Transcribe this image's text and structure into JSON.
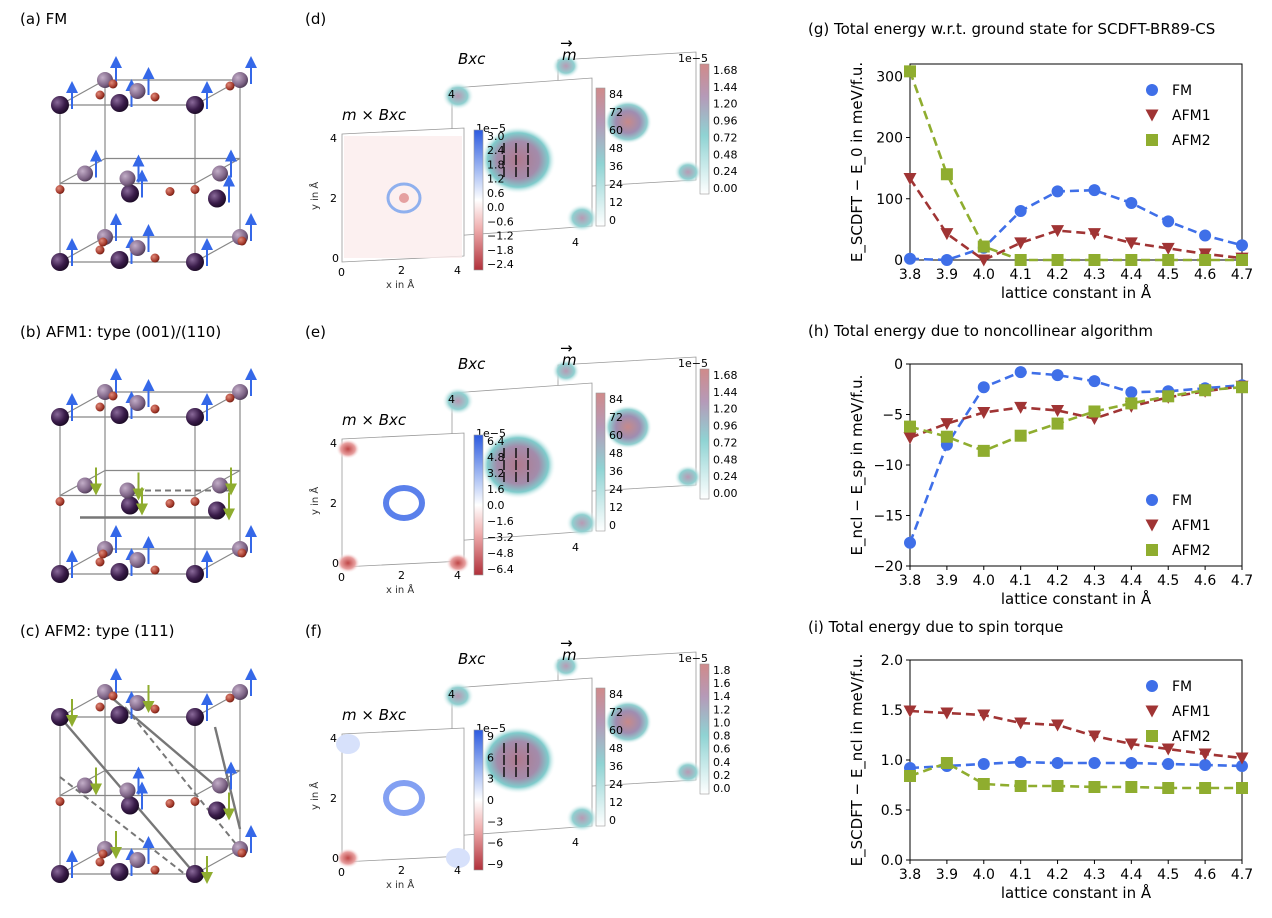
{
  "panels": {
    "a": "(a) FM",
    "b": "(b) AFM1: type (001)/(110)",
    "c": "(c) AFM2: type (111)",
    "d": "(d)",
    "e": "(e)",
    "f": "(f)"
  },
  "map_labels": {
    "torque": "m × Bxc",
    "bxc": "Bxc",
    "m": "m",
    "xlabel": "x in Å",
    "ylabel": "y in Å",
    "scale": "1e−5",
    "tick0": "0",
    "tick2": "2",
    "tick4": "4"
  },
  "colorbars": {
    "d_torque": [
      "3.0",
      "2.4",
      "1.8",
      "1.2",
      "0.6",
      "0.0",
      "−0.6",
      "−1.2",
      "−1.8",
      "−2.4"
    ],
    "e_torque": [
      "6.4",
      "4.8",
      "3.2",
      "1.6",
      "0.0",
      "−1.6",
      "−3.2",
      "−4.8",
      "−6.4"
    ],
    "f_torque": [
      "9",
      "6",
      "3",
      "0",
      "−3",
      "−6",
      "−9"
    ],
    "bxc": [
      "84",
      "72",
      "60",
      "48",
      "36",
      "24",
      "12",
      "0"
    ],
    "d_m": [
      "1.68",
      "1.44",
      "1.20",
      "0.96",
      "0.72",
      "0.48",
      "0.24",
      "0.00"
    ],
    "e_m": [
      "1.68",
      "1.44",
      "1.20",
      "0.96",
      "0.72",
      "0.48",
      "0.24",
      "0.00"
    ],
    "f_m": [
      "1.8",
      "1.6",
      "1.4",
      "1.2",
      "1.0",
      "0.8",
      "0.6",
      "0.4",
      "0.2",
      "0.0"
    ]
  },
  "colors": {
    "FM": "#3f6fe8",
    "AFM1": "#a03434",
    "AFM2": "#8fad2f"
  },
  "chart_data": [
    {
      "id": "g",
      "type": "line",
      "title": "(g) Total energy w.r.t. ground state for SCDFT-BR89-CS",
      "xlabel": "lattice constant in Å",
      "ylabel": "E_SCDFT − E_0 in meV/f.u.",
      "x": [
        3.8,
        3.9,
        4.0,
        4.1,
        4.2,
        4.3,
        4.4,
        4.5,
        4.6,
        4.7
      ],
      "xticks": [
        "3.8",
        "3.9",
        "4.0",
        "4.1",
        "4.2",
        "4.3",
        "4.4",
        "4.5",
        "4.6",
        "4.7"
      ],
      "yticks": [
        "0",
        "100",
        "200",
        "300"
      ],
      "ytick_values": [
        0,
        100,
        200,
        300
      ],
      "ylim": [
        0,
        320
      ],
      "legend_position": "top-right",
      "series": [
        {
          "name": "FM",
          "marker": "circle",
          "values": [
            2,
            0,
            20,
            80,
            112,
            114,
            93,
            63,
            40,
            24
          ]
        },
        {
          "name": "AFM1",
          "marker": "triangle-down",
          "values": [
            133,
            43,
            0,
            28,
            48,
            43,
            28,
            19,
            10,
            3
          ]
        },
        {
          "name": "AFM2",
          "marker": "square",
          "values": [
            308,
            140,
            22,
            0,
            0,
            0,
            0,
            0,
            0,
            0
          ]
        }
      ]
    },
    {
      "id": "h",
      "type": "line",
      "title": "(h) Total energy due to noncollinear algorithm",
      "xlabel": "lattice constant in Å",
      "ylabel": "E_ncl − E_sp in meV/f.u.",
      "x": [
        3.8,
        3.9,
        4.0,
        4.1,
        4.2,
        4.3,
        4.4,
        4.5,
        4.6,
        4.7
      ],
      "xticks": [
        "3.8",
        "3.9",
        "4.0",
        "4.1",
        "4.2",
        "4.3",
        "4.4",
        "4.5",
        "4.6",
        "4.7"
      ],
      "yticks": [
        "0",
        "−5",
        "−10",
        "−15",
        "−20"
      ],
      "ytick_values": [
        0,
        -5,
        -10,
        -15,
        -20
      ],
      "ylim": [
        -20,
        0
      ],
      "legend_position": "bottom-right",
      "series": [
        {
          "name": "FM",
          "marker": "circle",
          "values": [
            -17.7,
            -8.0,
            -2.3,
            -0.8,
            -1.1,
            -1.7,
            -2.8,
            -2.7,
            -2.4,
            -2.1
          ]
        },
        {
          "name": "AFM1",
          "marker": "triangle-down",
          "values": [
            -7.3,
            -5.9,
            -4.8,
            -4.3,
            -4.6,
            -5.4,
            -4.2,
            -3.3,
            -2.7,
            -2.2
          ]
        },
        {
          "name": "AFM2",
          "marker": "square",
          "values": [
            -6.2,
            -7.2,
            -8.6,
            -7.1,
            -5.9,
            -4.7,
            -3.9,
            -3.2,
            -2.6,
            -2.3
          ]
        }
      ]
    },
    {
      "id": "i",
      "type": "line",
      "title": "(i) Total energy due to spin torque",
      "xlabel": "lattice constant in Å",
      "ylabel": "E_SCDFT − E_ncl in meV/f.u.",
      "x": [
        3.8,
        3.9,
        4.0,
        4.1,
        4.2,
        4.3,
        4.4,
        4.5,
        4.6,
        4.7
      ],
      "xticks": [
        "3.8",
        "3.9",
        "4.0",
        "4.1",
        "4.2",
        "4.3",
        "4.4",
        "4.5",
        "4.6",
        "4.7"
      ],
      "yticks": [
        "0.0",
        "0.5",
        "1.0",
        "1.5",
        "2.0"
      ],
      "ytick_values": [
        0,
        0.5,
        1.0,
        1.5,
        2.0
      ],
      "ylim": [
        0,
        2.0
      ],
      "legend_position": "top-right",
      "series": [
        {
          "name": "FM",
          "marker": "circle",
          "values": [
            0.92,
            0.94,
            0.96,
            0.98,
            0.97,
            0.97,
            0.97,
            0.96,
            0.95,
            0.94
          ]
        },
        {
          "name": "AFM1",
          "marker": "triangle-down",
          "values": [
            1.49,
            1.47,
            1.45,
            1.37,
            1.35,
            1.24,
            1.16,
            1.11,
            1.06,
            1.02
          ]
        },
        {
          "name": "AFM2",
          "marker": "square",
          "values": [
            0.84,
            0.97,
            0.76,
            0.74,
            0.74,
            0.73,
            0.73,
            0.72,
            0.72,
            0.72
          ]
        }
      ]
    }
  ]
}
